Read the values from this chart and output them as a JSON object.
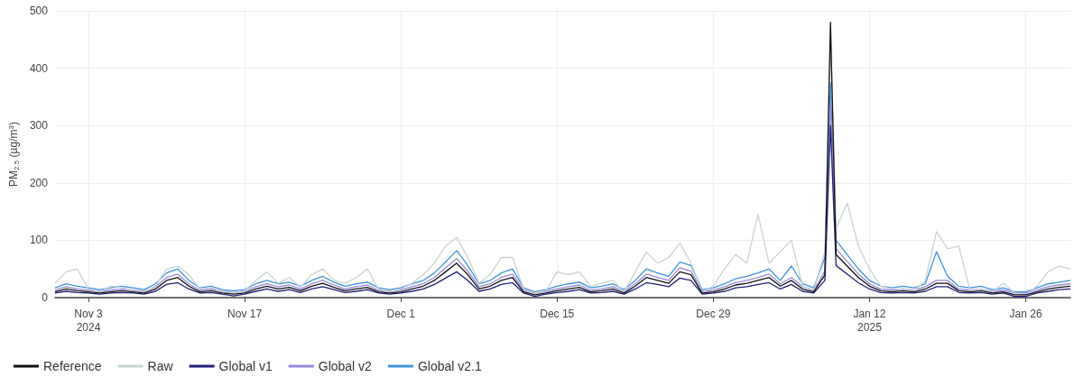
{
  "chart_data": {
    "type": "line",
    "ylabel": "PM$_{2.5}$ (µg/m$^{3}$)",
    "x": [
      "2024-10-31",
      "2024-11-01",
      "2024-11-02",
      "2024-11-03",
      "2024-11-04",
      "2024-11-05",
      "2024-11-06",
      "2024-11-07",
      "2024-11-08",
      "2024-11-09",
      "2024-11-10",
      "2024-11-11",
      "2024-11-12",
      "2024-11-13",
      "2024-11-14",
      "2024-11-15",
      "2024-11-16",
      "2024-11-17",
      "2024-11-18",
      "2024-11-19",
      "2024-11-20",
      "2024-11-21",
      "2024-11-22",
      "2024-11-23",
      "2024-11-24",
      "2024-11-25",
      "2024-11-26",
      "2024-11-27",
      "2024-11-28",
      "2024-11-29",
      "2024-11-30",
      "2024-12-01",
      "2024-12-02",
      "2024-12-03",
      "2024-12-04",
      "2024-12-05",
      "2024-12-06",
      "2024-12-07",
      "2024-12-08",
      "2024-12-09",
      "2024-12-10",
      "2024-12-11",
      "2024-12-12",
      "2024-12-13",
      "2024-12-14",
      "2024-12-15",
      "2024-12-16",
      "2024-12-17",
      "2024-12-18",
      "2024-12-19",
      "2024-12-20",
      "2024-12-21",
      "2024-12-22",
      "2024-12-23",
      "2024-12-24",
      "2024-12-25",
      "2024-12-26",
      "2024-12-27",
      "2024-12-28",
      "2024-12-29",
      "2024-12-30",
      "2024-12-31",
      "2025-01-01",
      "2025-01-02",
      "2025-01-03",
      "2025-01-04",
      "2025-01-05",
      "2025-01-06",
      "2025-01-07",
      "2025-01-08",
      "2025-01-08T12:00",
      "2025-01-09",
      "2025-01-10",
      "2025-01-11",
      "2025-01-12",
      "2025-01-13",
      "2025-01-14",
      "2025-01-15",
      "2025-01-16",
      "2025-01-17",
      "2025-01-18",
      "2025-01-19",
      "2025-01-20",
      "2025-01-21",
      "2025-01-22",
      "2025-01-23",
      "2025-01-24",
      "2025-01-25",
      "2025-01-26",
      "2025-01-27",
      "2025-01-28",
      "2025-01-29",
      "2025-01-30"
    ],
    "series": [
      {
        "name": "Reference",
        "color": "#111111",
        "values": [
          10,
          15,
          12,
          10,
          8,
          10,
          12,
          10,
          8,
          15,
          30,
          35,
          20,
          10,
          12,
          8,
          6,
          8,
          15,
          20,
          15,
          18,
          12,
          20,
          25,
          18,
          12,
          15,
          18,
          10,
          8,
          10,
          15,
          20,
          30,
          45,
          60,
          40,
          15,
          20,
          30,
          35,
          10,
          5,
          8,
          12,
          15,
          18,
          10,
          12,
          15,
          8,
          20,
          35,
          30,
          25,
          45,
          40,
          8,
          10,
          15,
          22,
          25,
          30,
          35,
          20,
          30,
          15,
          10,
          40,
          480,
          75,
          55,
          35,
          20,
          12,
          10,
          12,
          10,
          15,
          25,
          25,
          12,
          10,
          12,
          8,
          10,
          5,
          5,
          10,
          15,
          18,
          20
        ]
      },
      {
        "name": "Raw",
        "color": "#c8d3d3",
        "values": [
          25,
          45,
          50,
          15,
          10,
          20,
          18,
          12,
          10,
          20,
          50,
          55,
          40,
          15,
          18,
          10,
          8,
          12,
          30,
          45,
          25,
          35,
          18,
          40,
          50,
          30,
          25,
          35,
          50,
          15,
          10,
          15,
          25,
          40,
          60,
          90,
          105,
          70,
          25,
          40,
          70,
          70,
          15,
          8,
          12,
          45,
          40,
          45,
          20,
          25,
          30,
          10,
          45,
          80,
          60,
          70,
          95,
          60,
          10,
          20,
          50,
          75,
          60,
          145,
          60,
          80,
          100,
          20,
          12,
          80,
          450,
          120,
          165,
          90,
          50,
          20,
          15,
          15,
          12,
          30,
          115,
          85,
          90,
          12,
          15,
          10,
          25,
          8,
          5,
          20,
          45,
          55,
          50
        ]
      },
      {
        "name": "Global v1",
        "color": "#1f1f7a",
        "values": [
          8,
          11,
          9,
          8,
          6,
          8,
          9,
          8,
          6,
          11,
          23,
          26,
          15,
          8,
          9,
          6,
          3,
          6,
          11,
          15,
          11,
          14,
          9,
          15,
          19,
          14,
          9,
          11,
          14,
          8,
          6,
          8,
          11,
          15,
          23,
          34,
          45,
          30,
          11,
          15,
          23,
          26,
          8,
          2,
          6,
          9,
          11,
          14,
          8,
          9,
          11,
          6,
          15,
          26,
          23,
          19,
          34,
          30,
          6,
          8,
          11,
          17,
          19,
          23,
          26,
          15,
          23,
          11,
          8,
          30,
          300,
          56,
          41,
          26,
          15,
          9,
          8,
          9,
          8,
          11,
          19,
          19,
          9,
          8,
          9,
          6,
          8,
          2,
          2,
          8,
          11,
          14,
          15
        ]
      },
      {
        "name": "Global v2",
        "color": "#9a86e0",
        "values": [
          13,
          19,
          15,
          13,
          11,
          13,
          15,
          13,
          11,
          19,
          35,
          41,
          24,
          13,
          15,
          11,
          9,
          11,
          19,
          24,
          19,
          22,
          15,
          24,
          30,
          22,
          15,
          19,
          22,
          13,
          11,
          13,
          19,
          24,
          35,
          52,
          68,
          46,
          19,
          24,
          35,
          41,
          13,
          8,
          11,
          15,
          19,
          22,
          13,
          15,
          19,
          11,
          24,
          41,
          35,
          30,
          52,
          46,
          11,
          13,
          19,
          26,
          30,
          35,
          41,
          24,
          35,
          19,
          13,
          46,
          340,
          85,
          63,
          41,
          24,
          15,
          13,
          15,
          13,
          19,
          30,
          30,
          15,
          13,
          15,
          11,
          13,
          8,
          8,
          13,
          19,
          22,
          24
        ]
      },
      {
        "name": "Global v2.1",
        "color": "#3d92e0",
        "values": [
          17,
          24,
          20,
          17,
          14,
          17,
          20,
          17,
          14,
          24,
          43,
          50,
          30,
          17,
          20,
          14,
          12,
          14,
          24,
          30,
          24,
          27,
          20,
          30,
          37,
          27,
          20,
          24,
          27,
          17,
          14,
          17,
          24,
          30,
          43,
          62,
          82,
          56,
          24,
          30,
          43,
          50,
          17,
          10,
          14,
          20,
          24,
          27,
          17,
          20,
          24,
          14,
          30,
          50,
          43,
          37,
          62,
          56,
          14,
          17,
          24,
          33,
          37,
          43,
          50,
          30,
          55,
          24,
          17,
          70,
          375,
          100,
          75,
          50,
          30,
          20,
          17,
          20,
          17,
          24,
          80,
          37,
          20,
          17,
          20,
          14,
          17,
          10,
          10,
          17,
          24,
          27,
          30
        ]
      }
    ],
    "xlim": [
      "2024-10-31",
      "2025-01-30"
    ],
    "xticks": [
      {
        "value": "2024-11-03",
        "label": "Nov 3\n2024"
      },
      {
        "value": "2024-11-17",
        "label": "Nov 17"
      },
      {
        "value": "2024-12-01",
        "label": "Dec 1"
      },
      {
        "value": "2024-12-15",
        "label": "Dec 15"
      },
      {
        "value": "2024-12-29",
        "label": "Dec 29"
      },
      {
        "value": "2025-01-12",
        "label": "Jan 12\n2025"
      },
      {
        "value": "2025-01-26",
        "label": "Jan 26"
      }
    ],
    "ylim": [
      0,
      500
    ],
    "yticks": [
      0,
      100,
      200,
      300,
      400,
      500
    ],
    "grid": true,
    "legend": "bottom left",
    "marker": "none",
    "line_style": "solid"
  }
}
